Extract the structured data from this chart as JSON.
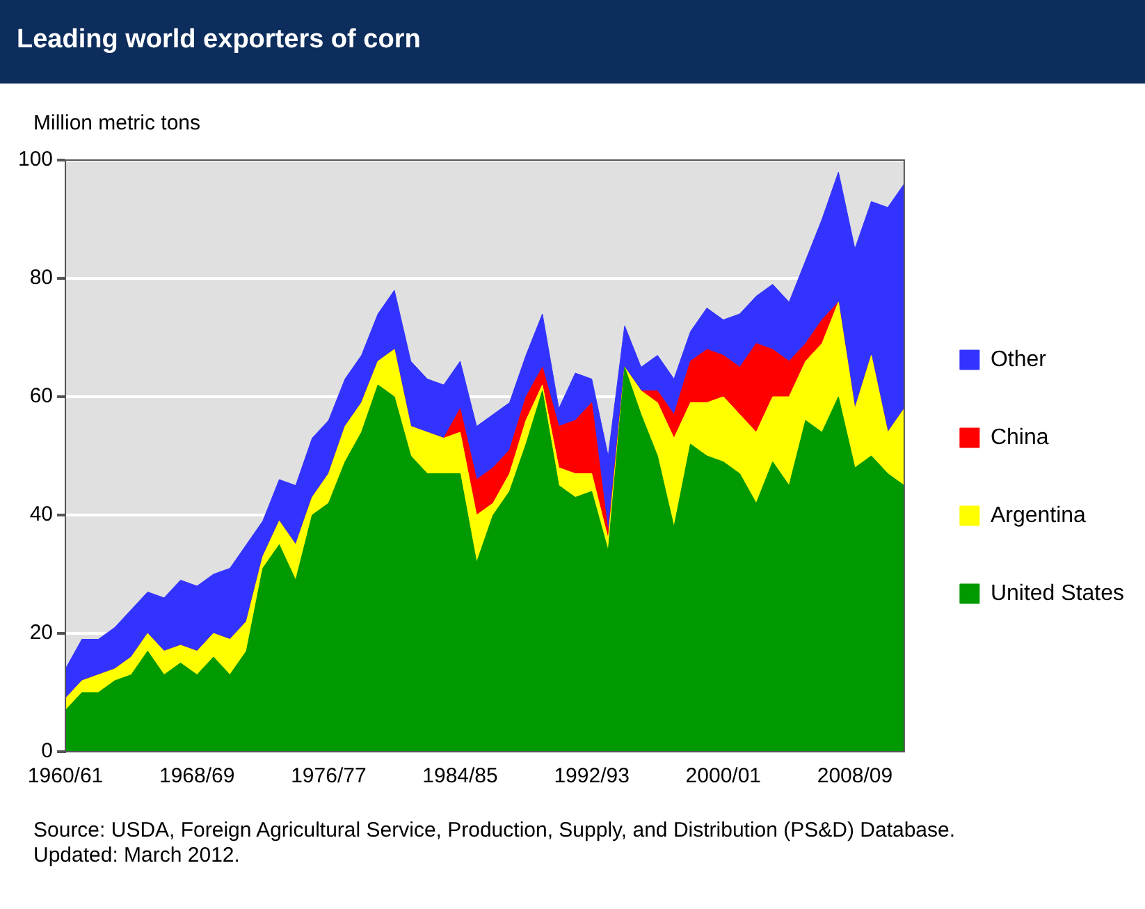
{
  "chart_data": {
    "type": "area",
    "stacked": true,
    "title": "Leading world exporters of corn",
    "ylabel": "Million metric tons",
    "categories": [
      "1960/61",
      null,
      null,
      null,
      null,
      null,
      null,
      null,
      "1968/69",
      null,
      null,
      null,
      null,
      null,
      null,
      null,
      "1976/77",
      null,
      null,
      null,
      null,
      null,
      null,
      null,
      "1984/85",
      null,
      null,
      null,
      null,
      null,
      null,
      null,
      "1992/93",
      null,
      null,
      null,
      null,
      null,
      null,
      null,
      "2000/01",
      null,
      null,
      null,
      null,
      null,
      null,
      null,
      "2008/09",
      null,
      null,
      null
    ],
    "series": [
      {
        "name": "United States",
        "color": "#009900",
        "values": [
          7,
          10,
          10,
          12,
          13,
          17,
          13,
          15,
          13,
          16,
          13,
          17,
          31,
          35,
          29,
          40,
          42,
          49,
          54,
          62,
          60,
          50,
          47,
          47,
          47,
          32,
          40,
          44,
          52,
          61,
          45,
          43,
          44,
          34,
          65,
          57,
          50,
          38,
          52,
          50,
          49,
          47,
          42,
          49,
          45,
          56,
          54,
          60,
          48,
          50,
          47,
          45
        ]
      },
      {
        "name": "Argentina",
        "color": "#ffff00",
        "values": [
          2,
          2,
          3,
          2,
          3,
          3,
          4,
          3,
          4,
          4,
          6,
          5,
          2,
          4,
          6,
          3,
          5,
          6,
          5,
          4,
          8,
          5,
          7,
          6,
          7,
          8,
          2,
          3,
          4,
          1,
          3,
          4,
          3,
          2,
          0,
          4,
          9,
          15,
          7,
          9,
          11,
          10,
          12,
          11,
          15,
          10,
          15,
          16,
          10,
          17,
          7,
          13
        ]
      },
      {
        "name": "China",
        "color": "#ff0000",
        "values": [
          0,
          0,
          0,
          0,
          0,
          0,
          0,
          0,
          0,
          0,
          0,
          0,
          0,
          0,
          0,
          0,
          0,
          0,
          0,
          0,
          0,
          0,
          0,
          0,
          4,
          6,
          6,
          4,
          4,
          3,
          7,
          9,
          12,
          1,
          0,
          0,
          2,
          4,
          7,
          9,
          7,
          8,
          15,
          8,
          6,
          3,
          4,
          0,
          0,
          0,
          0,
          0
        ]
      },
      {
        "name": "Other",
        "color": "#3333ff",
        "values": [
          5,
          7,
          6,
          7,
          8,
          7,
          9,
          11,
          11,
          10,
          12,
          13,
          6,
          7,
          10,
          10,
          9,
          8,
          8,
          8,
          10,
          11,
          9,
          9,
          8,
          9,
          9,
          8,
          7,
          9,
          3,
          8,
          4,
          13,
          7,
          4,
          6,
          6,
          5,
          7,
          6,
          9,
          8,
          11,
          10,
          14,
          17,
          22,
          27,
          26,
          38,
          38
        ]
      }
    ],
    "ylim": [
      0,
      100
    ],
    "yticks": [
      0,
      20,
      40,
      60,
      80,
      100
    ],
    "grid": "y",
    "legend": "right",
    "annotations": [
      "Source: USDA, Foreign Agricultural Service, Production, Supply, and Distribution (PS&D) Database.",
      "Updated: March 2012."
    ]
  }
}
